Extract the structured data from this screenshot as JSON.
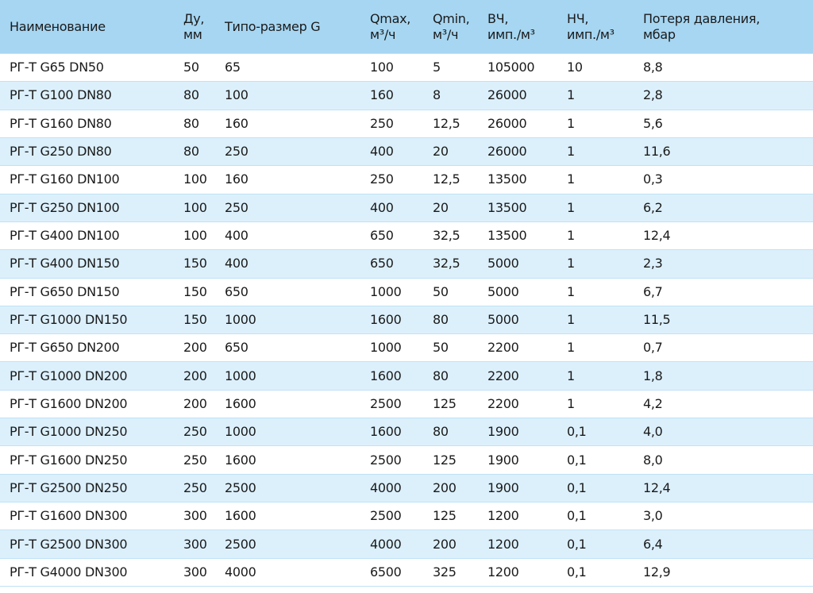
{
  "table": {
    "headers": [
      [
        "Наименование"
      ],
      [
        "Ду,",
        "мм"
      ],
      [
        "Типо-размер G"
      ],
      [
        "Qmax,",
        "м³/ч"
      ],
      [
        "Qmin,",
        "м³/ч"
      ],
      [
        "ВЧ,",
        "имп./м³"
      ],
      [
        "НЧ,",
        "имп./м³"
      ],
      [
        "Потеря давления,",
        "мбар"
      ]
    ],
    "rows": [
      [
        "РГ-Т G65 DN50",
        "50",
        "65",
        "100",
        "5",
        "105000",
        "10",
        "8,8"
      ],
      [
        "РГ-Т G100 DN80",
        "80",
        "100",
        "160",
        "8",
        "26000",
        "1",
        "2,8"
      ],
      [
        "РГ-Т G160 DN80",
        "80",
        "160",
        "250",
        "12,5",
        "26000",
        "1",
        "5,6"
      ],
      [
        "РГ-Т G250 DN80",
        "80",
        "250",
        "400",
        "20",
        "26000",
        "1",
        "11,6"
      ],
      [
        "РГ-Т G160 DN100",
        "100",
        "160",
        "250",
        "12,5",
        "13500",
        "1",
        "0,3"
      ],
      [
        "РГ-Т G250 DN100",
        "100",
        "250",
        "400",
        "20",
        "13500",
        "1",
        "6,2"
      ],
      [
        "РГ-Т G400 DN100",
        "100",
        "400",
        "650",
        "32,5",
        "13500",
        "1",
        "12,4"
      ],
      [
        "РГ-Т G400 DN150",
        "150",
        "400",
        "650",
        "32,5",
        "5000",
        "1",
        "2,3"
      ],
      [
        "РГ-Т G650 DN150",
        "150",
        "650",
        "1000",
        "50",
        "5000",
        "1",
        "6,7"
      ],
      [
        "РГ-Т G1000 DN150",
        "150",
        "1000",
        "1600",
        "80",
        "5000",
        "1",
        "11,5"
      ],
      [
        "РГ-Т G650 DN200",
        "200",
        "650",
        "1000",
        "50",
        "2200",
        "1",
        "0,7"
      ],
      [
        "РГ-Т G1000 DN200",
        "200",
        "1000",
        "1600",
        "80",
        "2200",
        "1",
        "1,8"
      ],
      [
        "РГ-Т G1600 DN200",
        "200",
        "1600",
        "2500",
        "125",
        "2200",
        "1",
        "4,2"
      ],
      [
        "РГ-Т G1000 DN250",
        "250",
        "1000",
        "1600",
        "80",
        "1900",
        "0,1",
        "4,0"
      ],
      [
        "РГ-Т G1600 DN250",
        "250",
        "1600",
        "2500",
        "125",
        "1900",
        "0,1",
        "8,0"
      ],
      [
        "РГ-Т G2500 DN250",
        "250",
        "2500",
        "4000",
        "200",
        "1900",
        "0,1",
        "12,4"
      ],
      [
        "РГ-Т G1600 DN300",
        "300",
        "1600",
        "2500",
        "125",
        "1200",
        "0,1",
        "3,0"
      ],
      [
        "РГ-Т G2500 DN300",
        "300",
        "2500",
        "4000",
        "200",
        "1200",
        "0,1",
        "6,4"
      ],
      [
        "РГ-Т G4000 DN300",
        "300",
        "4000",
        "6500",
        "325",
        "1200",
        "0,1",
        "12,9"
      ]
    ]
  }
}
